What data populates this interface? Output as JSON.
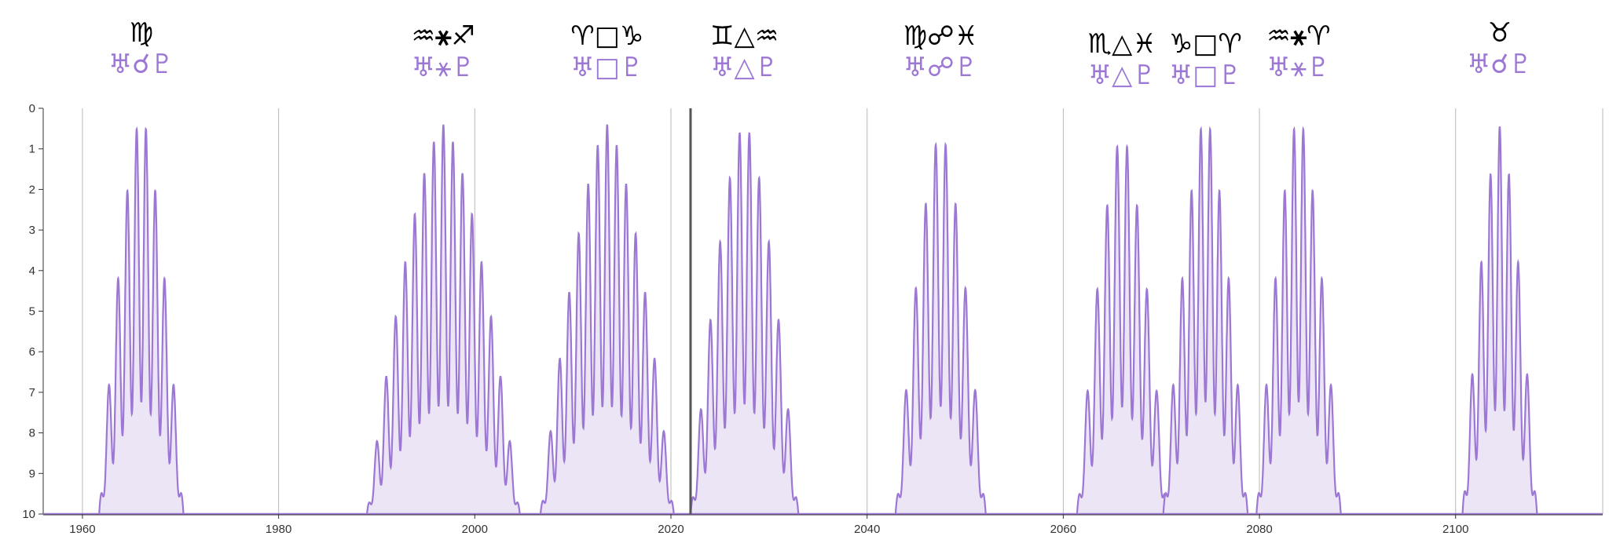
{
  "chart_data": {
    "type": "area",
    "title": "",
    "xlabel": "",
    "ylabel": "",
    "xlim": [
      1956,
      2115
    ],
    "ylim": [
      0,
      10
    ],
    "y_axis_inverted": true,
    "grid": "vertical lines at labeled years",
    "current_year_marker": 2022.0,
    "x_ticks": [
      1960,
      1980,
      2000,
      2020,
      2040,
      2060,
      2080,
      2100
    ],
    "y_ticks": [
      0,
      1,
      2,
      3,
      4,
      5,
      6,
      7,
      8,
      9,
      10
    ],
    "series_color": "#9c77d4",
    "fill_color": "#ece5f6",
    "aspects": [
      {
        "signs": "♍",
        "planets": "♅☌♇",
        "center": 1966.0,
        "half_width": 4.3,
        "min_orb": 0.15,
        "peaks": 9
      },
      {
        "signs": "♒⚹♐",
        "planets": "♅⚹♇",
        "center": 1996.8,
        "half_width": 7.8,
        "min_orb": 0.4,
        "peaks": 16
      },
      {
        "signs": "♈□♑",
        "planets": "♅□♇",
        "center": 2013.5,
        "half_width": 6.8,
        "min_orb": 0.4,
        "peaks": 14
      },
      {
        "signs": "♊△♒",
        "planets": "♅△♇",
        "center": 2027.5,
        "half_width": 5.5,
        "min_orb": 0.35,
        "peaks": 11
      },
      {
        "signs": "♍☍♓",
        "planets": "♅☍♇",
        "center": 2047.5,
        "half_width": 4.6,
        "min_orb": 0.55,
        "peaks": 9
      },
      {
        "signs": "♏△♓",
        "planets": "♅△♇",
        "center": 2066.0,
        "half_width": 4.6,
        "min_orb": 0.6,
        "peaks": 9
      },
      {
        "signs": "♑□♈",
        "planets": "♅□♇",
        "center": 2074.5,
        "half_width": 4.3,
        "min_orb": 0.15,
        "peaks": 9
      },
      {
        "signs": "♒⚹♈",
        "planets": "♅⚹♇",
        "center": 2084.0,
        "half_width": 4.3,
        "min_orb": 0.15,
        "peaks": 9
      },
      {
        "signs": "♉",
        "planets": "♅☌♇",
        "center": 2104.5,
        "half_width": 3.8,
        "min_orb": 0.45,
        "peaks": 8
      }
    ]
  }
}
